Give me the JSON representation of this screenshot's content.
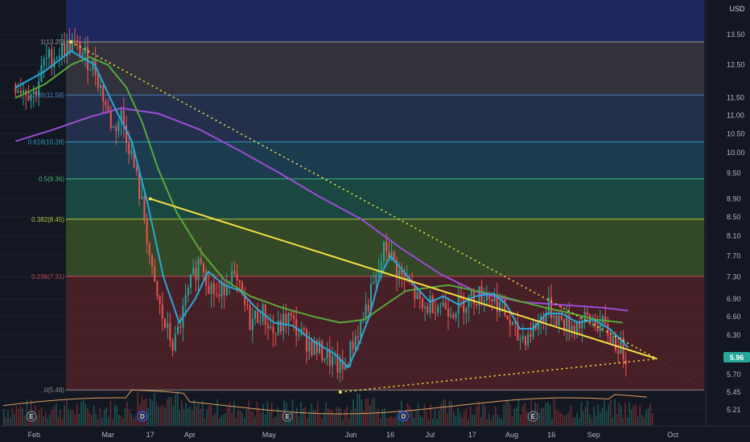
{
  "currency": "USD",
  "colors": {
    "background": "#131722",
    "grid": "#1e222d",
    "axis_text": "#b2b5be",
    "up": "#26a69a",
    "down": "#ef5350",
    "ma_fast": "#2aa7d9",
    "ma_mid": "#57a83a",
    "ma_slow": "#9c4dd6",
    "triangle": "#f5e042",
    "price_tag": "#26a69a"
  },
  "chart_data": {
    "type": "candlestick",
    "ylim": [
      5.0,
      14.0
    ],
    "y_scale": "log",
    "y_ticks": [
      "13.50",
      "12.50",
      "11.50",
      "11.00",
      "10.50",
      "10.00",
      "9.50",
      "8.90",
      "8.50",
      "8.10",
      "7.70",
      "7.30",
      "6.90",
      "6.60",
      "6.30",
      "5.96",
      "5.70",
      "5.45",
      "5.21"
    ],
    "x_ticks": [
      "Feb",
      "Mar",
      "17",
      "Apr",
      "May",
      "Jun",
      "16",
      "Jul",
      "17",
      "Aug",
      "16",
      "Sep",
      "Oct"
    ],
    "last_price": "5.96",
    "fib_levels": [
      {
        "label": "1(13.25)",
        "ratio": 1,
        "value": 13.25
      },
      {
        "label": "0.786(11.58)",
        "ratio": 0.786,
        "value": 11.58
      },
      {
        "label": "0.618(10.28)",
        "ratio": 0.618,
        "value": 10.28
      },
      {
        "label": "0.5(9.36)",
        "ratio": 0.5,
        "value": 9.36
      },
      {
        "label": "0.382(8.45)",
        "ratio": 0.382,
        "value": 8.45
      },
      {
        "label": "0.236(7.31)",
        "ratio": 0.236,
        "value": 7.31
      },
      {
        "label": "0(5.48)",
        "ratio": 0,
        "value": 5.48
      }
    ],
    "price_path": [
      [
        "2021-01-25",
        11.9
      ],
      [
        "2021-02-01",
        11.6
      ],
      [
        "2021-02-05",
        12.6
      ],
      [
        "2021-02-10",
        12.9
      ],
      [
        "2021-02-15",
        13.2
      ],
      [
        "2021-02-19",
        12.9
      ],
      [
        "2021-02-24",
        12.4
      ],
      [
        "2021-02-28",
        11.3
      ],
      [
        "2021-03-03",
        10.6
      ],
      [
        "2021-03-06",
        11.0
      ],
      [
        "2021-03-09",
        10.2
      ],
      [
        "2021-03-12",
        9.3
      ],
      [
        "2021-03-15",
        8.4
      ],
      [
        "2021-03-18",
        7.2
      ],
      [
        "2021-03-22",
        6.5
      ],
      [
        "2021-03-26",
        6.1
      ],
      [
        "2021-03-29",
        6.6
      ],
      [
        "2021-04-01",
        7.1
      ],
      [
        "2021-04-05",
        7.7
      ],
      [
        "2021-04-08",
        7.2
      ],
      [
        "2021-04-12",
        6.9
      ],
      [
        "2021-04-16",
        7.4
      ],
      [
        "2021-04-20",
        7.0
      ],
      [
        "2021-04-24",
        6.5
      ],
      [
        "2021-04-28",
        6.7
      ],
      [
        "2021-05-03",
        6.3
      ],
      [
        "2021-05-08",
        6.6
      ],
      [
        "2021-05-13",
        6.3
      ],
      [
        "2021-05-18",
        6.1
      ],
      [
        "2021-05-22",
        6.0
      ],
      [
        "2021-05-26",
        5.85
      ],
      [
        "2021-05-29",
        5.75
      ],
      [
        "2021-06-02",
        6.2
      ],
      [
        "2021-06-05",
        6.5
      ],
      [
        "2021-06-08",
        6.9
      ],
      [
        "2021-06-11",
        7.3
      ],
      [
        "2021-06-14",
        7.9
      ],
      [
        "2021-06-17",
        7.6
      ],
      [
        "2021-06-20",
        7.3
      ],
      [
        "2021-06-24",
        7.1
      ],
      [
        "2021-06-28",
        6.7
      ],
      [
        "2021-07-02",
        6.85
      ],
      [
        "2021-07-06",
        6.8
      ],
      [
        "2021-07-10",
        6.75
      ],
      [
        "2021-07-14",
        6.85
      ],
      [
        "2021-07-18",
        6.95
      ],
      [
        "2021-07-22",
        7.0
      ],
      [
        "2021-07-26",
        6.9
      ],
      [
        "2021-07-30",
        6.6
      ],
      [
        "2021-08-03",
        6.25
      ],
      [
        "2021-08-07",
        6.3
      ],
      [
        "2021-08-11",
        6.5
      ],
      [
        "2021-08-15",
        6.75
      ],
      [
        "2021-08-19",
        6.55
      ],
      [
        "2021-08-23",
        6.45
      ],
      [
        "2021-08-27",
        6.5
      ],
      [
        "2021-08-31",
        6.55
      ],
      [
        "2021-09-04",
        6.45
      ],
      [
        "2021-09-08",
        6.25
      ],
      [
        "2021-09-12",
        6.05
      ],
      [
        "2021-09-14",
        5.96
      ]
    ],
    "ma_fast": [
      [
        "2021-01-25",
        11.8
      ],
      [
        "2021-02-05",
        12.3
      ],
      [
        "2021-02-15",
        12.95
      ],
      [
        "2021-02-24",
        12.5
      ],
      [
        "2021-03-03",
        11.3
      ],
      [
        "2021-03-10",
        10.3
      ],
      [
        "2021-03-16",
        8.8
      ],
      [
        "2021-03-22",
        7.3
      ],
      [
        "2021-03-28",
        6.5
      ],
      [
        "2021-04-03",
        6.9
      ],
      [
        "2021-04-08",
        7.4
      ],
      [
        "2021-04-14",
        7.15
      ],
      [
        "2021-04-20",
        7.05
      ],
      [
        "2021-04-26",
        6.75
      ],
      [
        "2021-05-03",
        6.5
      ],
      [
        "2021-05-10",
        6.45
      ],
      [
        "2021-05-18",
        6.2
      ],
      [
        "2021-05-26",
        6.0
      ],
      [
        "2021-05-31",
        5.8
      ],
      [
        "2021-06-04",
        6.15
      ],
      [
        "2021-06-08",
        6.6
      ],
      [
        "2021-06-12",
        7.3
      ],
      [
        "2021-06-16",
        7.7
      ],
      [
        "2021-06-21",
        7.4
      ],
      [
        "2021-06-26",
        7.1
      ],
      [
        "2021-07-01",
        6.85
      ],
      [
        "2021-07-06",
        6.95
      ],
      [
        "2021-07-12",
        6.8
      ],
      [
        "2021-07-18",
        6.95
      ],
      [
        "2021-07-25",
        7.0
      ],
      [
        "2021-07-30",
        6.8
      ],
      [
        "2021-08-04",
        6.4
      ],
      [
        "2021-08-09",
        6.4
      ],
      [
        "2021-08-14",
        6.65
      ],
      [
        "2021-08-20",
        6.65
      ],
      [
        "2021-08-26",
        6.5
      ],
      [
        "2021-09-01",
        6.55
      ],
      [
        "2021-09-07",
        6.4
      ],
      [
        "2021-09-12",
        6.2
      ],
      [
        "2021-09-14",
        6.1
      ]
    ],
    "ma_mid": [
      [
        "2021-01-25",
        11.5
      ],
      [
        "2021-02-05",
        11.9
      ],
      [
        "2021-02-15",
        12.5
      ],
      [
        "2021-02-22",
        12.75
      ],
      [
        "2021-03-01",
        12.5
      ],
      [
        "2021-03-08",
        11.8
      ],
      [
        "2021-03-14",
        10.8
      ],
      [
        "2021-03-20",
        9.6
      ],
      [
        "2021-03-27",
        8.6
      ],
      [
        "2021-04-05",
        7.8
      ],
      [
        "2021-04-14",
        7.25
      ],
      [
        "2021-04-24",
        6.95
      ],
      [
        "2021-05-06",
        6.75
      ],
      [
        "2021-05-18",
        6.6
      ],
      [
        "2021-05-28",
        6.5
      ],
      [
        "2021-06-06",
        6.55
      ],
      [
        "2021-06-14",
        6.8
      ],
      [
        "2021-06-22",
        7.05
      ],
      [
        "2021-06-30",
        7.1
      ],
      [
        "2021-07-08",
        7.15
      ],
      [
        "2021-07-18",
        7.05
      ],
      [
        "2021-07-28",
        6.95
      ],
      [
        "2021-08-05",
        6.85
      ],
      [
        "2021-08-14",
        6.75
      ],
      [
        "2021-08-24",
        6.65
      ],
      [
        "2021-09-02",
        6.55
      ],
      [
        "2021-09-12",
        6.5
      ]
    ],
    "ma_slow": [
      [
        "2021-01-25",
        10.3
      ],
      [
        "2021-02-08",
        10.6
      ],
      [
        "2021-02-22",
        10.95
      ],
      [
        "2021-03-06",
        11.2
      ],
      [
        "2021-03-20",
        11.05
      ],
      [
        "2021-04-05",
        10.6
      ],
      [
        "2021-04-20",
        10.05
      ],
      [
        "2021-05-05",
        9.5
      ],
      [
        "2021-05-20",
        8.95
      ],
      [
        "2021-06-05",
        8.45
      ],
      [
        "2021-06-20",
        7.85
      ],
      [
        "2021-07-05",
        7.35
      ],
      [
        "2021-07-20",
        7.0
      ],
      [
        "2021-08-05",
        6.85
      ],
      [
        "2021-08-20",
        6.8
      ],
      [
        "2021-09-05",
        6.75
      ],
      [
        "2021-09-14",
        6.7
      ]
    ],
    "trend_solid": [
      [
        "2021-03-17",
        8.9
      ],
      [
        "2021-09-25",
        5.93
      ]
    ],
    "trend_upper": [
      [
        "2021-02-15",
        13.25
      ],
      [
        "2021-09-25",
        5.93
      ]
    ],
    "trend_lower": [
      [
        "2021-05-28",
        5.45
      ],
      [
        "2021-09-25",
        5.93
      ]
    ],
    "events": [
      {
        "label": "E",
        "date": "2021-01-31",
        "type": "earnings"
      },
      {
        "label": "D",
        "date": "2021-03-14",
        "type": "dividend"
      },
      {
        "label": "E",
        "date": "2021-05-08",
        "type": "earnings"
      },
      {
        "label": "D",
        "date": "2021-06-21",
        "type": "dividend"
      },
      {
        "label": "E",
        "date": "2021-08-09",
        "type": "earnings"
      }
    ]
  }
}
